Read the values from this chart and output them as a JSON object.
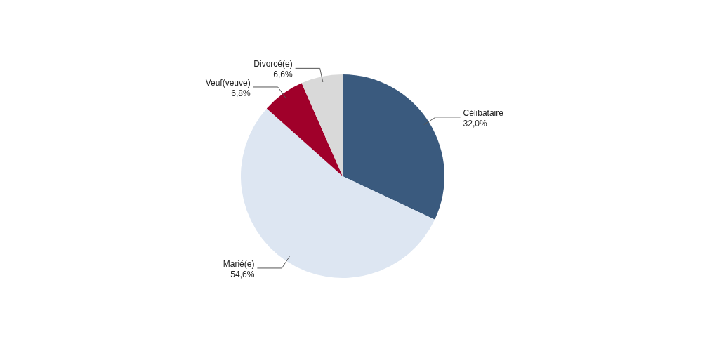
{
  "chart_data": {
    "type": "pie",
    "categories": [
      "Célibataire",
      "Marié(e)",
      "Veuf(veuve)",
      "Divorcé(e)"
    ],
    "values": [
      32.0,
      54.6,
      6.8,
      6.6
    ],
    "colors": [
      "#3a5a7e",
      "#dde6f2",
      "#a0002a",
      "#d9d9d9"
    ],
    "value_labels": [
      "32,0%",
      "54,6%",
      "6,8%",
      "6,6%"
    ],
    "legend": false
  }
}
